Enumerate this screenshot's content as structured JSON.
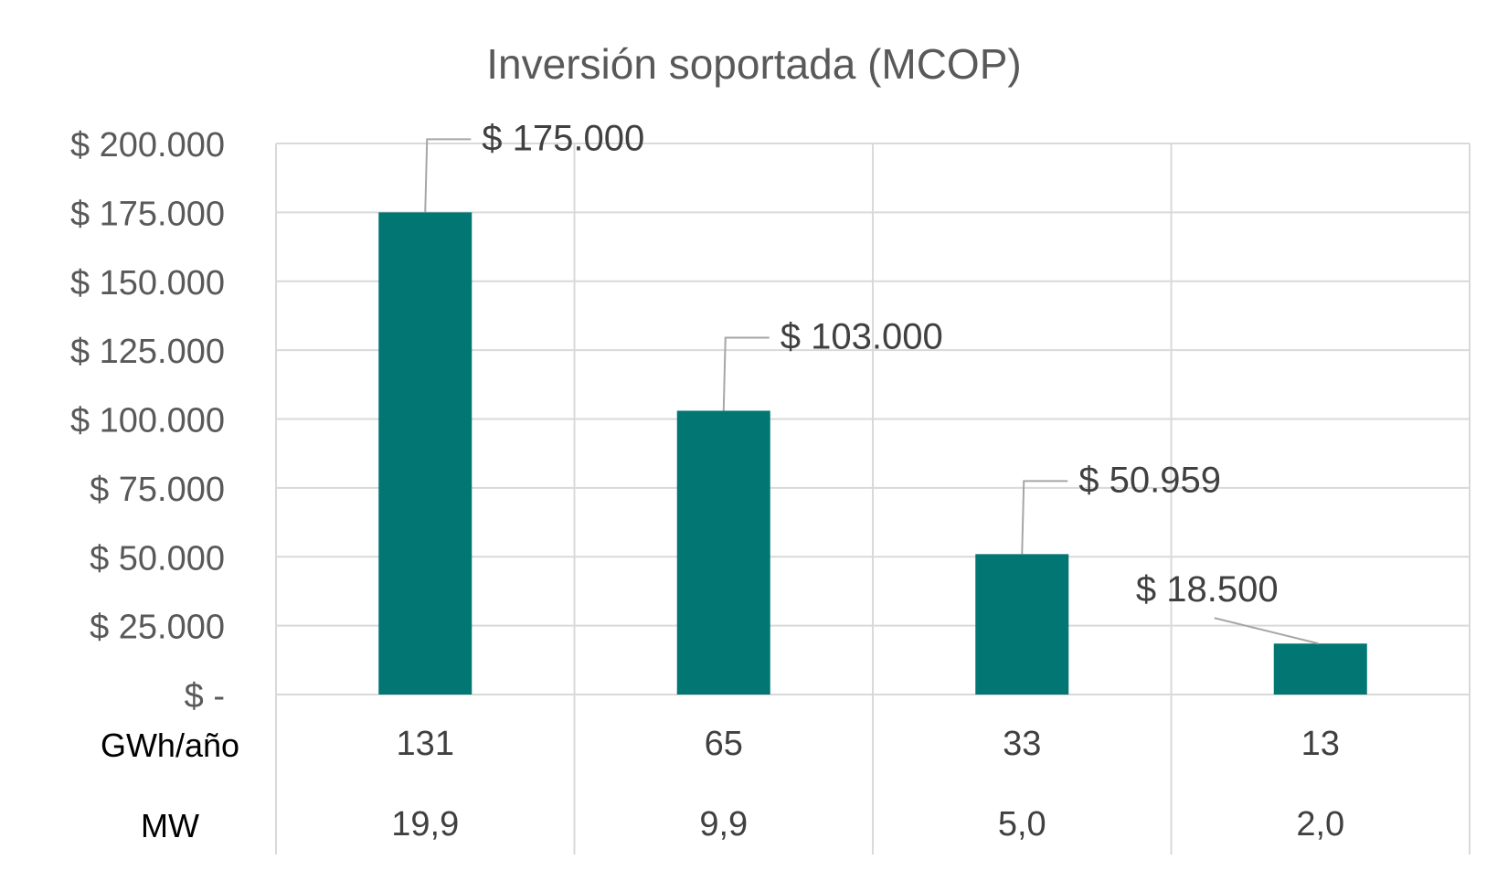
{
  "chart_data": {
    "type": "bar",
    "title": "Inversión soportada (MCOP)",
    "categories": [
      "131",
      "65",
      "33",
      "13"
    ],
    "values": [
      175000,
      103000,
      50959,
      18500
    ],
    "data_labels": [
      "$ 175.000",
      "$ 103.000",
      "$ 50.959",
      "$ 18.500"
    ],
    "ylim": [
      0,
      200000
    ],
    "yticks": [
      {
        "value": 0,
        "label": "$ -"
      },
      {
        "value": 25000,
        "label": "$ 25.000"
      },
      {
        "value": 50000,
        "label": "$ 50.000"
      },
      {
        "value": 75000,
        "label": "$ 75.000"
      },
      {
        "value": 100000,
        "label": "$ 100.000"
      },
      {
        "value": 125000,
        "label": "$ 125.000"
      },
      {
        "value": 150000,
        "label": "$ 150.000"
      },
      {
        "value": 175000,
        "label": "$ 175.000"
      },
      {
        "value": 200000,
        "label": "$ 200.000"
      }
    ],
    "table_rows": [
      {
        "header": "GWh/año",
        "cells": [
          "131",
          "65",
          "33",
          "13"
        ]
      },
      {
        "header": "MW",
        "cells": [
          "19,9",
          "9,9",
          "5,0",
          "2,0"
        ]
      }
    ],
    "bar_color": "#027673",
    "grid": true,
    "legend": "none"
  }
}
